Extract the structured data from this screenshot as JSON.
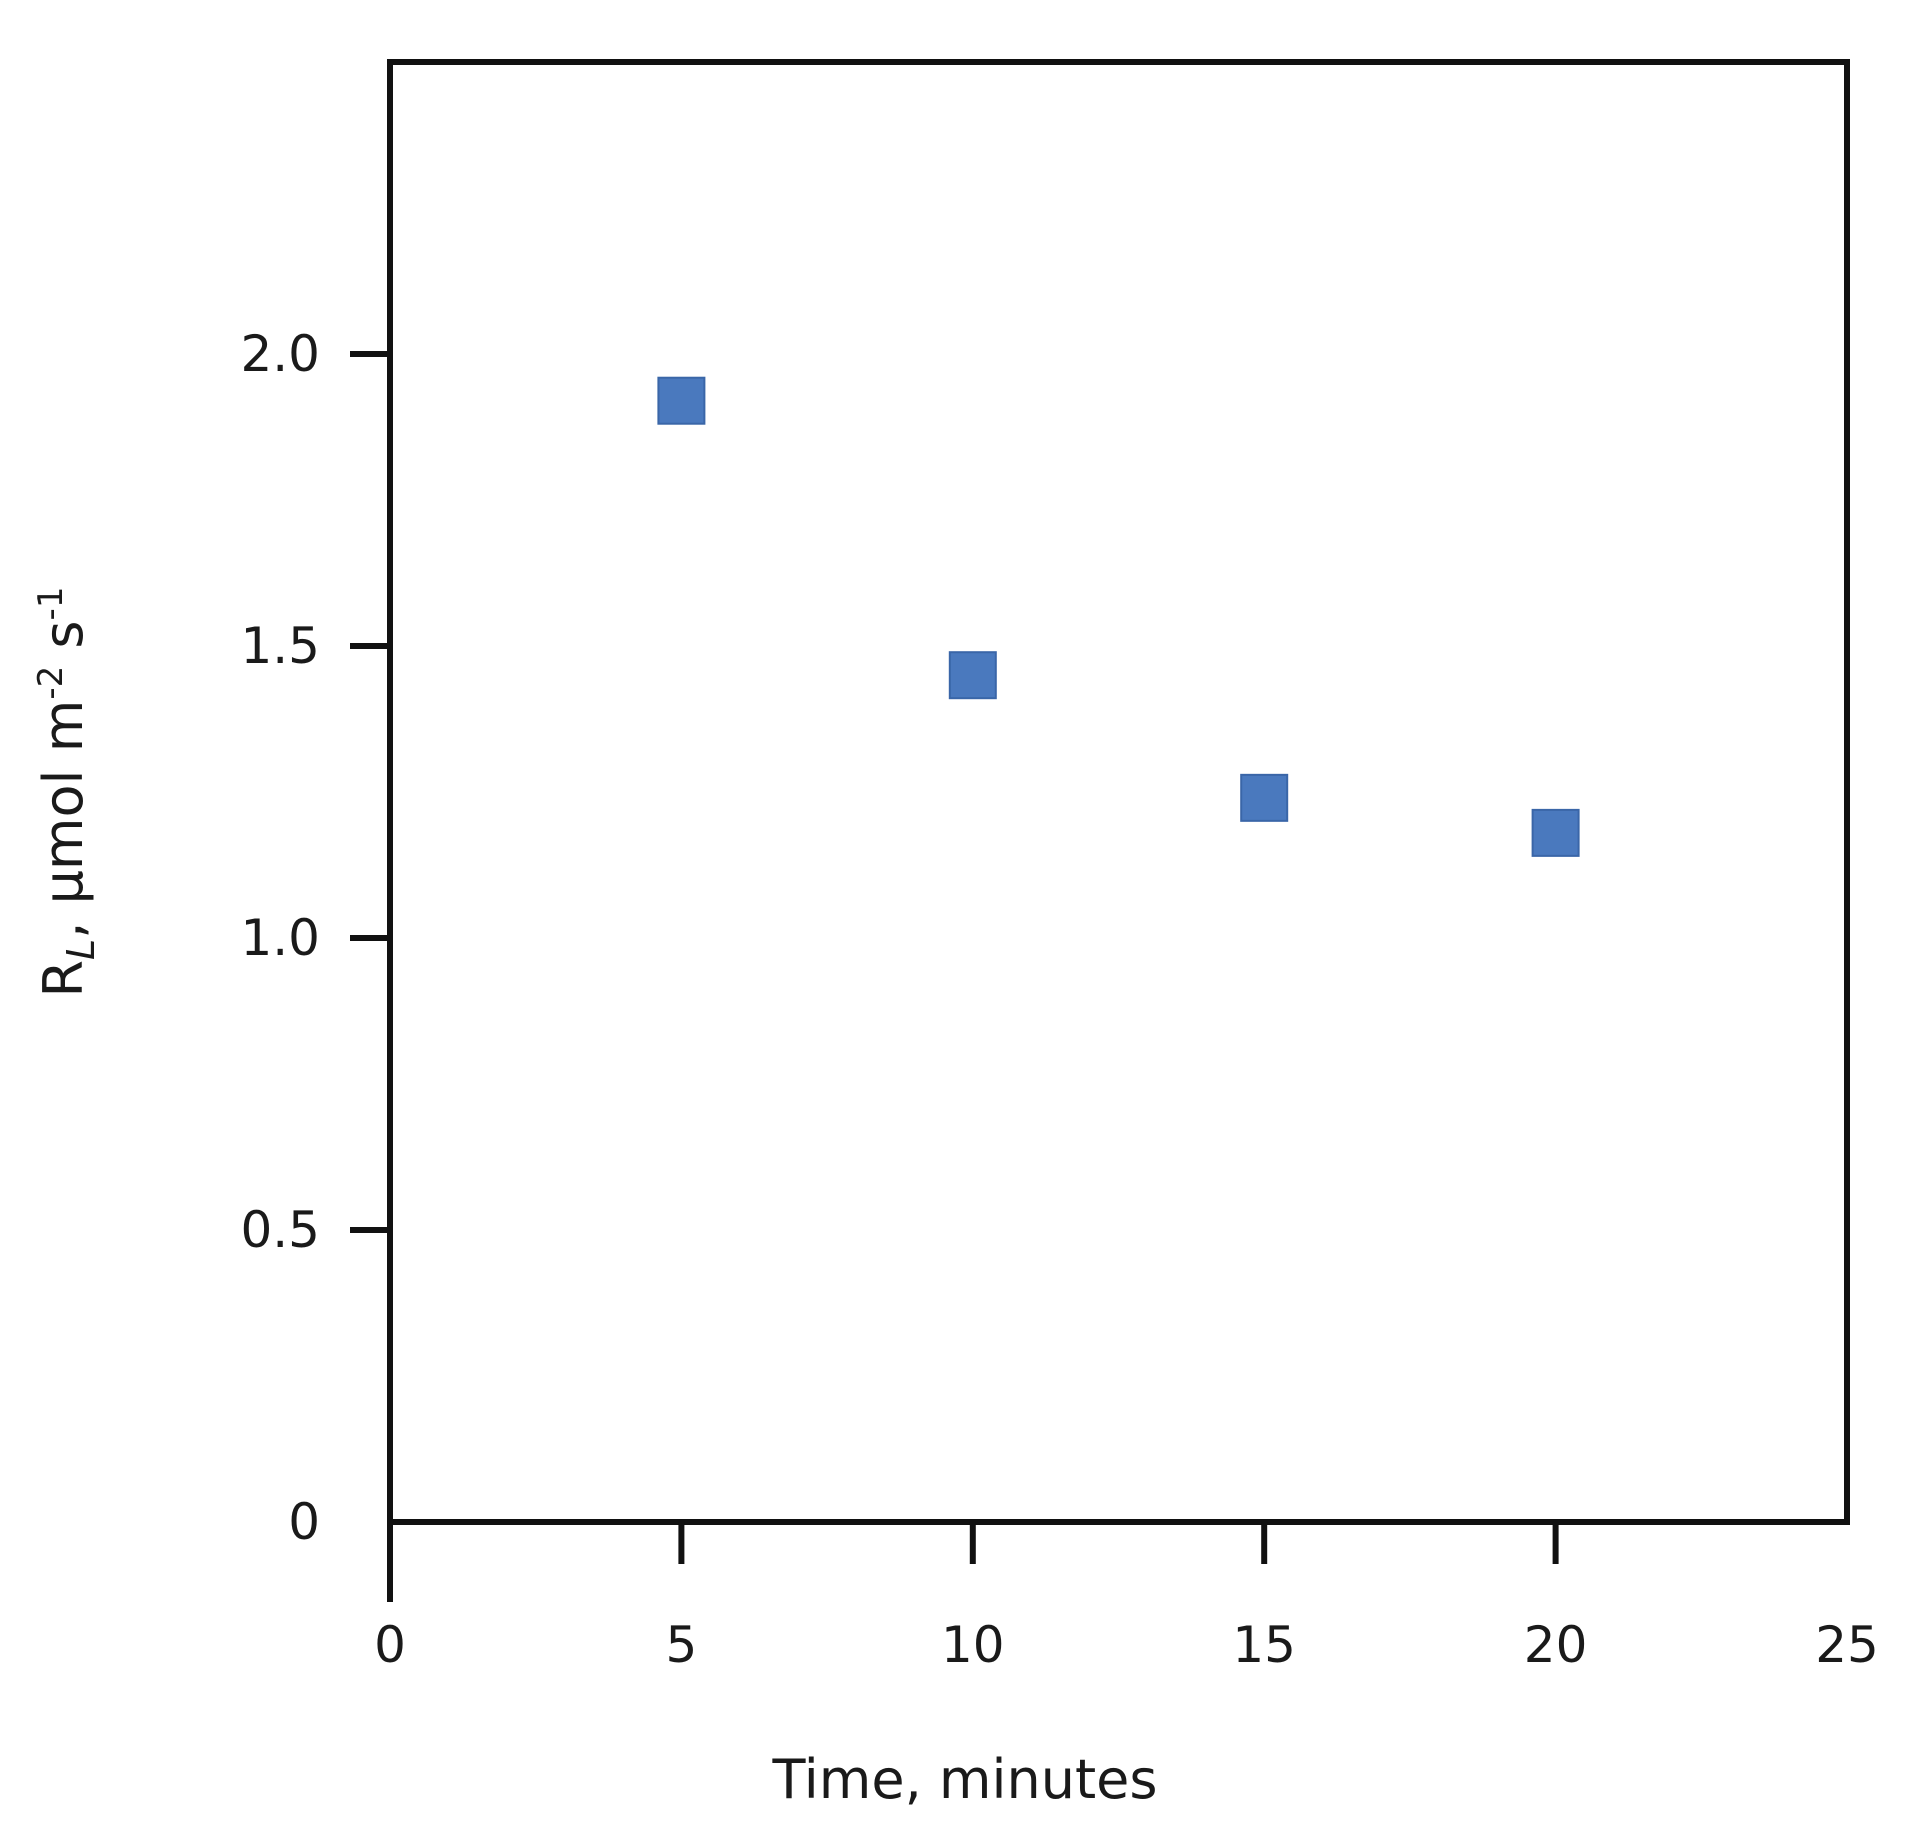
{
  "chart_data": {
    "type": "scatter",
    "title": "",
    "xlabel": "Time, minutes",
    "ylabel_main": "R",
    "ylabel_sub": "L",
    "ylabel_rest": ", μmol m",
    "ylabel_sup1": "-2",
    "ylabel_mid": " s",
    "ylabel_sup2": "-1",
    "xlim": [
      0,
      25
    ],
    "ylim": [
      0,
      2.5
    ],
    "x_ticks": [
      0,
      5,
      10,
      15,
      20,
      25
    ],
    "x_tick_labels": [
      "0",
      "5",
      "10",
      "15",
      "20",
      "25"
    ],
    "y_ticks": [
      0,
      0.5,
      1.0,
      1.5,
      2.0
    ],
    "y_tick_labels": [
      "0",
      "0.5",
      "1.0",
      "1.5",
      "2.0"
    ],
    "grid": false,
    "marker": "square",
    "marker_color": "#4a79be",
    "series": [
      {
        "x": [
          5,
          10,
          15,
          20
        ],
        "y": [
          1.92,
          1.45,
          1.24,
          1.18
        ]
      }
    ]
  }
}
